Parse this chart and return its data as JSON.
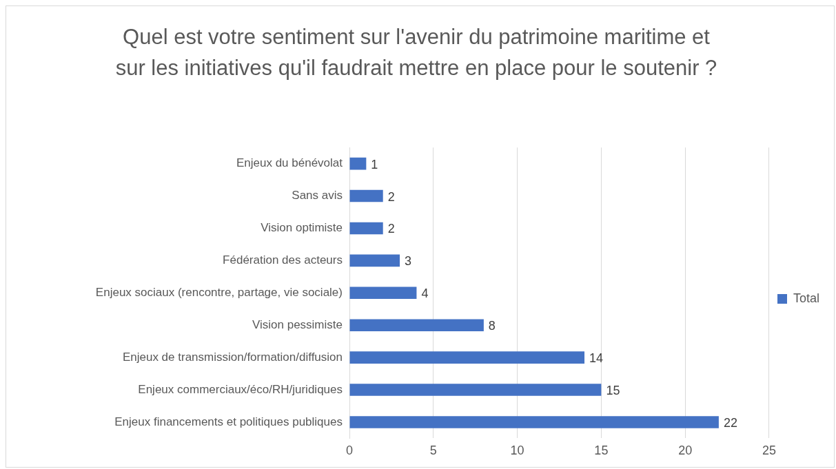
{
  "chart_data": {
    "type": "bar",
    "orientation": "horizontal",
    "title": "Quel est votre sentiment sur l'avenir du patrimoine maritime et sur les initiatives qu'il faudrait mettre en place pour le soutenir ?",
    "categories": [
      "Enjeux du bénévolat",
      "Sans avis",
      "Vision optimiste",
      "Fédération des acteurs",
      "Enjeux sociaux (rencontre, partage, vie sociale)",
      "Vision pessimiste",
      "Enjeux de transmission/formation/diffusion",
      "Enjeux commerciaux/éco/RH/juridiques",
      "Enjeux financements et politiques publiques"
    ],
    "series": [
      {
        "name": "Total",
        "color": "#4472c4",
        "values": [
          1,
          2,
          2,
          3,
          4,
          8,
          14,
          15,
          22
        ]
      }
    ],
    "xlim": [
      0,
      25
    ],
    "xticks": [
      0,
      5,
      10,
      15,
      20,
      25
    ],
    "grid": "x",
    "legend": "right",
    "data_labels": true
  }
}
